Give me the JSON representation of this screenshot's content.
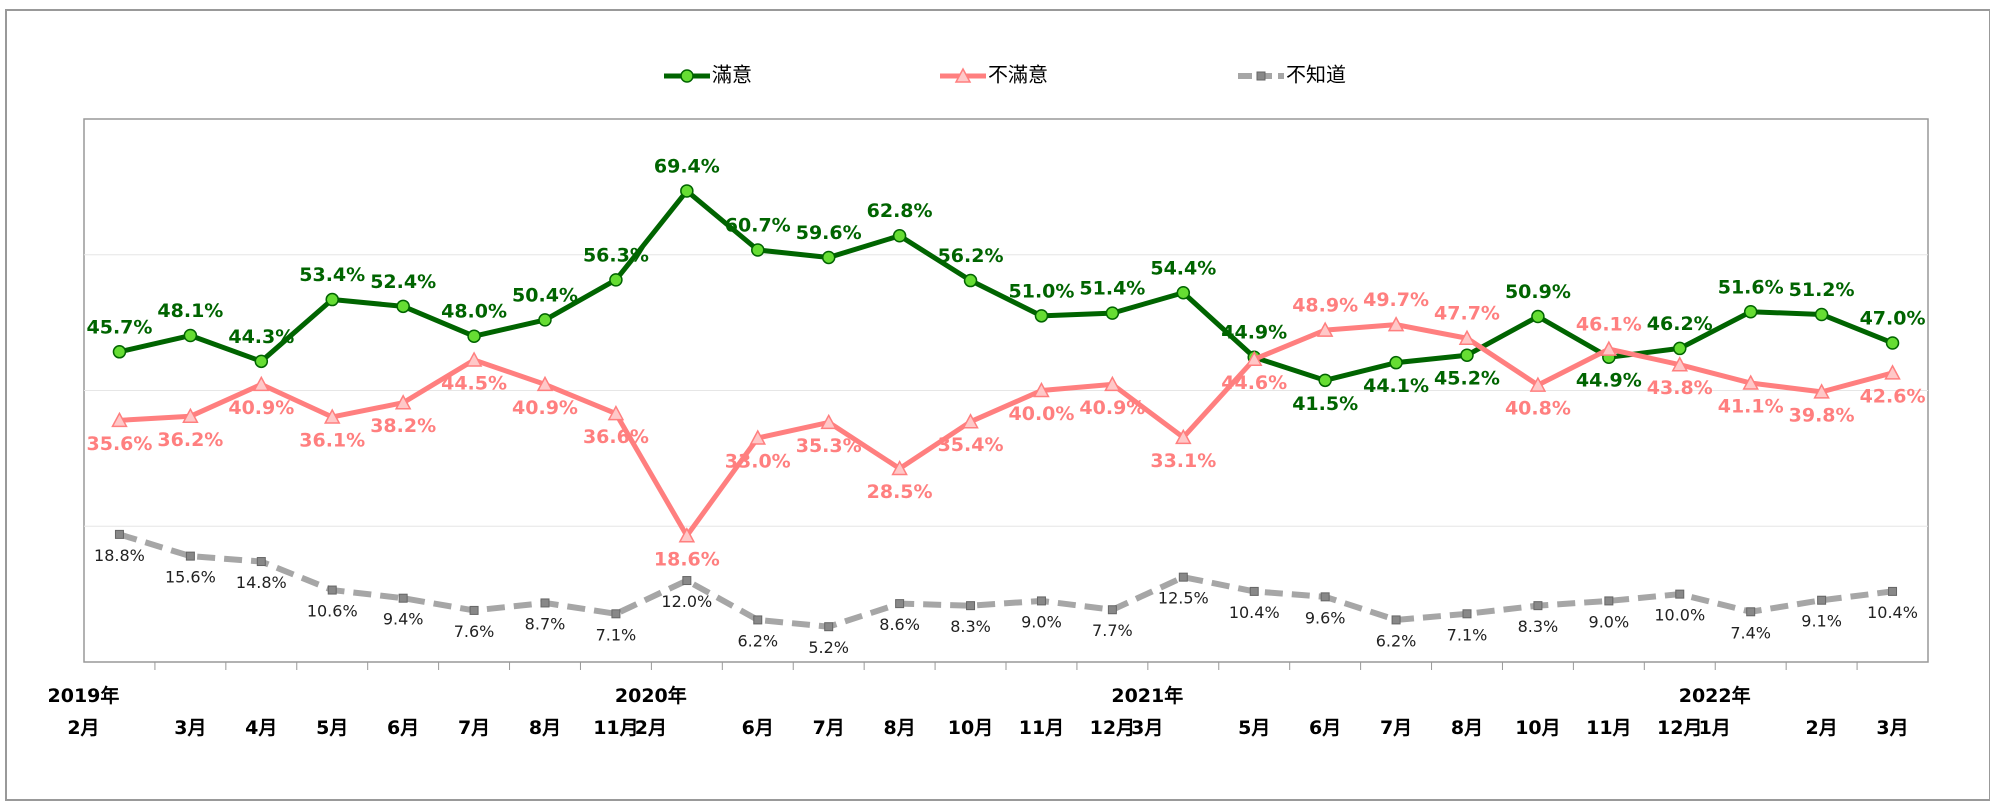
{
  "chart_data": {
    "type": "line",
    "categories": [
      "2019年\n2月",
      "3月",
      "4月",
      "5月",
      "6月",
      "7月",
      "8月",
      "11月",
      "2020年\n2月",
      "6月",
      "7月",
      "8月",
      "10月",
      "11月",
      "12月",
      "2021年\n3月",
      "5月",
      "6月",
      "7月",
      "8月",
      "10月",
      "11月",
      "12月",
      "2022年\n1月",
      "2月",
      "3月"
    ],
    "ylim": [
      0,
      80
    ],
    "yticks": [
      20,
      40,
      60
    ],
    "grid": true,
    "legend": "top",
    "series": [
      {
        "name": "滿意",
        "color": "#006400",
        "marker": "circle",
        "values": [
          45.7,
          48.1,
          44.3,
          53.4,
          52.4,
          48.0,
          50.4,
          56.3,
          69.4,
          60.7,
          59.6,
          62.8,
          56.2,
          51.0,
          51.4,
          54.4,
          44.9,
          41.5,
          44.1,
          45.2,
          50.9,
          44.9,
          46.2,
          51.6,
          51.2,
          47.0
        ],
        "value_labels": [
          "45.7%",
          "48.1%",
          "44.3%",
          "53.4%",
          "52.4%",
          "48.0%",
          "50.4%",
          "56.3%",
          "69.4%",
          "60.7%",
          "59.6%",
          "62.8%",
          "56.2%",
          "51.0%",
          "51.4%",
          "54.4%",
          "44.9%",
          "41.5%",
          "44.1%",
          "45.2%",
          "50.9%",
          "44.9%",
          "46.2%",
          "51.6%",
          "51.2%",
          "47.0%"
        ]
      },
      {
        "name": "不滿意",
        "color": "#ff7f7f",
        "marker": "triangle",
        "values": [
          35.6,
          36.2,
          40.9,
          36.1,
          38.2,
          44.5,
          40.9,
          36.6,
          18.6,
          33.0,
          35.3,
          28.5,
          35.4,
          40.0,
          40.9,
          33.1,
          44.6,
          48.9,
          49.7,
          47.7,
          40.8,
          46.1,
          43.8,
          41.1,
          39.8,
          42.6
        ],
        "value_labels": [
          "35.6%",
          "36.2%",
          "40.9%",
          "36.1%",
          "38.2%",
          "44.5%",
          "40.9%",
          "36.6%",
          "18.6%",
          "33.0%",
          "35.3%",
          "28.5%",
          "35.4%",
          "40.0%",
          "40.9%",
          "33.1%",
          "44.6%",
          "48.9%",
          "49.7%",
          "47.7%",
          "40.8%",
          "46.1%",
          "43.8%",
          "41.1%",
          "39.8%",
          "42.6%"
        ]
      },
      {
        "name": "不知道",
        "color": "#a6a6a6",
        "marker": "square",
        "dashed": true,
        "values": [
          18.8,
          15.6,
          14.8,
          10.6,
          9.4,
          7.6,
          8.7,
          7.1,
          12.0,
          6.2,
          5.2,
          8.6,
          8.3,
          9.0,
          7.7,
          12.5,
          10.4,
          9.6,
          6.2,
          7.1,
          8.3,
          9.0,
          10.0,
          7.4,
          9.1,
          10.4
        ],
        "value_labels": [
          "18.8%",
          "15.6%",
          "14.8%",
          "10.6%",
          "9.4%",
          "7.6%",
          "8.7%",
          "7.1%",
          "12.0%",
          "6.2%",
          "5.2%",
          "8.6%",
          "8.3%",
          "9.0%",
          "7.7%",
          "12.5%",
          "10.4%",
          "9.6%",
          "6.2%",
          "7.1%",
          "8.3%",
          "9.0%",
          "10.0%",
          "7.4%",
          "9.1%",
          "10.4%"
        ]
      }
    ]
  }
}
